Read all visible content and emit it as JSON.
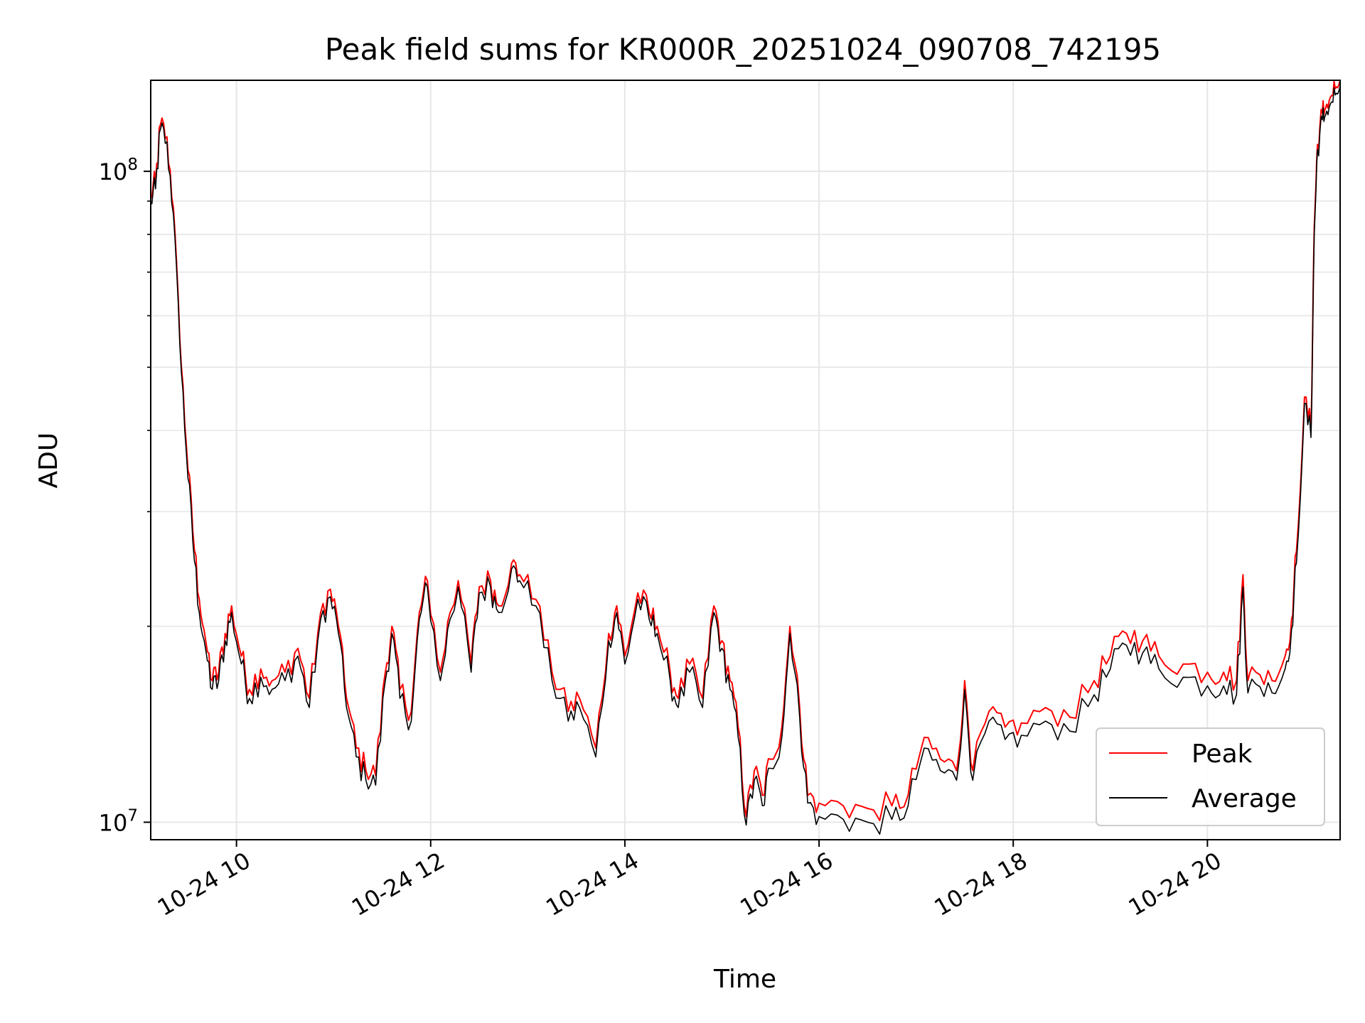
{
  "chart_data": {
    "type": "line",
    "title": "Peak field sums for KR000R_20251024_090708_742195",
    "xlabel": "Time",
    "ylabel": "ADU",
    "x_scale": "time",
    "y_scale": "log",
    "xlim": [
      "2025-10-24 09:07",
      "2025-10-24 21:22"
    ],
    "ylim": [
      9400000,
      138000000
    ],
    "x_ticks": [
      {
        "value": "2025-10-24 10:00",
        "label": "10-24 10"
      },
      {
        "value": "2025-10-24 12:00",
        "label": "10-24 12"
      },
      {
        "value": "2025-10-24 14:00",
        "label": "10-24 14"
      },
      {
        "value": "2025-10-24 16:00",
        "label": "10-24 16"
      },
      {
        "value": "2025-10-24 18:00",
        "label": "10-24 18"
      },
      {
        "value": "2025-10-24 20:00",
        "label": "10-24 20"
      }
    ],
    "y_ticks": [
      {
        "value": 10000000,
        "base": "10",
        "exp": "7"
      },
      {
        "value": 100000000,
        "base": "10",
        "exp": "8"
      }
    ],
    "grid": true,
    "legend_position": "bottom-right",
    "x": [
      "2025-10-24 09:07",
      "2025-10-24 09:10",
      "2025-10-24 09:13",
      "2025-10-24 09:17",
      "2025-10-24 09:21",
      "2025-10-24 09:25",
      "2025-10-24 09:29",
      "2025-10-24 09:33",
      "2025-10-24 09:37",
      "2025-10-24 09:41",
      "2025-10-24 09:45",
      "2025-10-24 09:49",
      "2025-10-24 09:53",
      "2025-10-24 09:57",
      "2025-10-24 10:03",
      "2025-10-24 10:08",
      "2025-10-24 10:15",
      "2025-10-24 10:22",
      "2025-10-24 10:30",
      "2025-10-24 10:38",
      "2025-10-24 10:45",
      "2025-10-24 10:52",
      "2025-10-24 10:58",
      "2025-10-24 11:03",
      "2025-10-24 11:08",
      "2025-10-24 11:14",
      "2025-10-24 11:20",
      "2025-10-24 11:26",
      "2025-10-24 11:32",
      "2025-10-24 11:36",
      "2025-10-24 11:41",
      "2025-10-24 11:48",
      "2025-10-24 11:53",
      "2025-10-24 11:58",
      "2025-10-24 12:06",
      "2025-10-24 12:12",
      "2025-10-24 12:17",
      "2025-10-24 12:25",
      "2025-10-24 12:30",
      "2025-10-24 12:37",
      "2025-10-24 12:42",
      "2025-10-24 12:50",
      "2025-10-24 12:55",
      "2025-10-24 13:05",
      "2025-10-24 13:15",
      "2025-10-24 13:25",
      "2025-10-24 13:32",
      "2025-10-24 13:42",
      "2025-10-24 13:50",
      "2025-10-24 13:55",
      "2025-10-24 14:00",
      "2025-10-24 14:08",
      "2025-10-24 14:15",
      "2025-10-24 14:20",
      "2025-10-24 14:28",
      "2025-10-24 14:33",
      "2025-10-24 14:40",
      "2025-10-24 14:48",
      "2025-10-24 14:55",
      "2025-10-24 15:00",
      "2025-10-24 15:05",
      "2025-10-24 15:10",
      "2025-10-24 15:15",
      "2025-10-24 15:20",
      "2025-10-24 15:25",
      "2025-10-24 15:30",
      "2025-10-24 15:37",
      "2025-10-24 15:42",
      "2025-10-24 15:48",
      "2025-10-24 15:53",
      "2025-10-24 16:00",
      "2025-10-24 16:15",
      "2025-10-24 16:30",
      "2025-10-24 16:45",
      "2025-10-24 16:55",
      "2025-10-24 17:05",
      "2025-10-24 17:15",
      "2025-10-24 17:25",
      "2025-10-24 17:30",
      "2025-10-24 17:35",
      "2025-10-24 17:45",
      "2025-10-24 17:55",
      "2025-10-24 18:05",
      "2025-10-24 18:20",
      "2025-10-24 18:35",
      "2025-10-24 18:50",
      "2025-10-24 19:00",
      "2025-10-24 19:10",
      "2025-10-24 19:20",
      "2025-10-24 19:30",
      "2025-10-24 19:45",
      "2025-10-24 20:00",
      "2025-10-24 20:10",
      "2025-10-24 20:18",
      "2025-10-24 20:22",
      "2025-10-24 20:25",
      "2025-10-24 20:30",
      "2025-10-24 20:40",
      "2025-10-24 20:48",
      "2025-10-24 20:52",
      "2025-10-24 20:55",
      "2025-10-24 21:00",
      "2025-10-24 21:04",
      "2025-10-24 21:06",
      "2025-10-24 21:08",
      "2025-10-24 21:11",
      "2025-10-24 21:13",
      "2025-10-24 21:16",
      "2025-10-24 21:19",
      "2025-10-24 21:22"
    ],
    "series": [
      {
        "name": "Peak",
        "color": "#ff0000",
        "values": [
          92000000,
          96000000,
          118000000,
          113000000,
          88000000,
          55000000,
          38000000,
          28000000,
          22000000,
          19000000,
          16500000,
          17000000,
          19500000,
          21500000,
          18000000,
          16000000,
          17200000,
          16500000,
          17000000,
          18500000,
          15500000,
          21000000,
          22800000,
          20000000,
          15500000,
          13000000,
          12000000,
          11800000,
          17000000,
          20000000,
          16000000,
          14800000,
          21000000,
          23500000,
          17000000,
          21000000,
          23500000,
          17500000,
          23000000,
          23500000,
          21500000,
          25000000,
          24000000,
          22000000,
          17000000,
          14800000,
          15500000,
          13000000,
          19500000,
          21500000,
          18000000,
          22500000,
          21000000,
          20000000,
          17000000,
          15500000,
          17500000,
          15500000,
          21500000,
          19000000,
          16500000,
          14000000,
          10200000,
          12000000,
          11000000,
          12500000,
          14000000,
          20000000,
          15000000,
          11000000,
          10700000,
          10600000,
          10500000,
          10600000,
          11000000,
          13500000,
          12500000,
          12000000,
          16500000,
          12000000,
          14800000,
          14000000,
          14200000,
          15000000,
          14500000,
          16500000,
          18000000,
          19500000,
          19000000,
          18000000,
          17500000,
          17000000,
          17000000,
          16500000,
          24000000,
          16500000,
          17000000,
          16500000,
          18000000,
          20500000,
          26000000,
          45000000,
          40000000,
          82000000,
          110000000,
          123000000,
          125000000,
          130000000,
          134000000,
          138000000
        ]
      },
      {
        "name": "Average",
        "color": "#000000",
        "values": [
          90000000,
          94000000,
          116000000,
          111000000,
          86000000,
          54000000,
          37000000,
          27000000,
          21000000,
          18400000,
          16000000,
          16500000,
          19000000,
          21000000,
          17500000,
          15500000,
          16700000,
          16000000,
          16500000,
          18000000,
          15000000,
          20500000,
          22200000,
          19500000,
          15000000,
          12600000,
          11600000,
          11400000,
          16500000,
          19500000,
          15500000,
          14300000,
          20500000,
          23000000,
          16500000,
          20500000,
          23000000,
          17000000,
          22500000,
          23000000,
          21000000,
          24500000,
          23500000,
          21500000,
          16500000,
          14300000,
          15000000,
          12600000,
          19000000,
          21000000,
          17500000,
          22000000,
          20500000,
          19500000,
          16500000,
          15000000,
          17000000,
          15000000,
          21000000,
          18500000,
          16000000,
          13500000,
          9900000,
          11600000,
          10600000,
          12100000,
          13500000,
          19500000,
          14500000,
          10700000,
          10200000,
          10100000,
          10000000,
          10100000,
          10600000,
          13000000,
          12000000,
          11600000,
          16000000,
          11600000,
          14300000,
          13400000,
          13600000,
          14300000,
          13800000,
          15700000,
          17200000,
          18700000,
          18200000,
          17200000,
          16700000,
          16200000,
          16200000,
          15700000,
          23000000,
          15800000,
          16300000,
          15800000,
          17200000,
          19800000,
          25000000,
          44000000,
          39000000,
          80000000,
          108000000,
          120000000,
          122000000,
          127000000,
          131000000,
          135000000
        ]
      }
    ]
  }
}
